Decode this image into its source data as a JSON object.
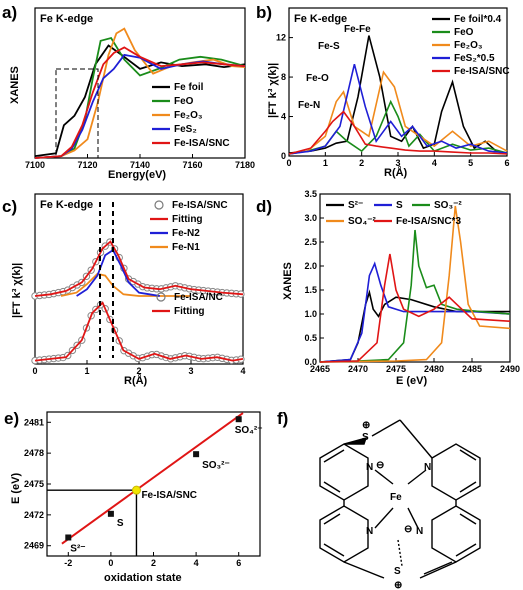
{
  "panels": {
    "a": "a)",
    "b": "b)",
    "c": "c)",
    "d": "d)",
    "e": "e)",
    "f": "f)"
  },
  "chart_data": [
    {
      "panel": "a",
      "type": "line",
      "title": "Fe K-edge",
      "xlabel": "Energy(eV)",
      "ylabel": "XANES",
      "xlim": [
        7100,
        7180
      ],
      "ylim": [
        0,
        1.6
      ],
      "xticks": [
        7100,
        7120,
        7140,
        7160,
        7180
      ],
      "legend_position": "bottom-right",
      "series": [
        {
          "name": "Fe foil",
          "color": "#000000",
          "x": [
            7100,
            7108,
            7111,
            7115,
            7119,
            7123,
            7128,
            7133,
            7140,
            7148,
            7156,
            7165,
            7172,
            7180
          ],
          "y": [
            0.02,
            0.05,
            0.35,
            0.45,
            0.65,
            1.0,
            1.2,
            1.1,
            0.95,
            1.02,
            0.98,
            1.0,
            0.97,
            1.0
          ]
        },
        {
          "name": "FeO",
          "color": "#1a8c1a",
          "x": [
            7100,
            7110,
            7115,
            7119,
            7122,
            7125,
            7129,
            7134,
            7140,
            7147,
            7155,
            7163,
            7171,
            7180
          ],
          "y": [
            0.0,
            0.02,
            0.1,
            0.4,
            0.85,
            1.25,
            1.28,
            1.05,
            0.88,
            0.95,
            1.05,
            1.08,
            1.05,
            0.98
          ]
        },
        {
          "name": "Fe2O3",
          "color": "#f08a1c",
          "x": [
            7100,
            7110,
            7115,
            7120,
            7124,
            7128,
            7131,
            7134,
            7138,
            7145,
            7152,
            7160,
            7168,
            7175,
            7180
          ],
          "y": [
            0.0,
            0.02,
            0.08,
            0.2,
            0.6,
            1.1,
            1.33,
            1.38,
            1.15,
            0.9,
            0.98,
            1.02,
            1.05,
            0.98,
            0.97
          ]
        },
        {
          "name": "FeS2",
          "color": "#1f1fd6",
          "x": [
            7100,
            7110,
            7114,
            7118,
            7122,
            7126,
            7130,
            7134,
            7140,
            7148,
            7156,
            7164,
            7172,
            7180
          ],
          "y": [
            0.0,
            0.02,
            0.1,
            0.3,
            0.6,
            0.85,
            0.95,
            1.1,
            1.07,
            0.95,
            1.0,
            1.03,
            1.0,
            0.98
          ]
        },
        {
          "name": "Fe-ISA/SNC",
          "color": "#e01515",
          "x": [
            7100,
            7110,
            7114,
            7118,
            7122,
            7126,
            7130,
            7134,
            7140,
            7148,
            7156,
            7164,
            7172,
            7180
          ],
          "y": [
            0.0,
            0.02,
            0.12,
            0.35,
            0.7,
            1.0,
            1.12,
            1.18,
            1.08,
            0.98,
            1.0,
            1.02,
            1.0,
            0.98
          ]
        }
      ]
    },
    {
      "panel": "b",
      "type": "line",
      "title": "Fe K-edge",
      "xlabel": "R(Å)",
      "ylabel": "|FT k³ χ(k)|",
      "xlim": [
        0,
        6
      ],
      "ylim": [
        0,
        15
      ],
      "yticks": [
        0,
        4,
        8,
        12
      ],
      "xticks": [
        0,
        1,
        2,
        3,
        4,
        5,
        6
      ],
      "legend_position": "top-right",
      "annotations": [
        "Fe-Fe",
        "Fe-S",
        "Fe-O",
        "Fe-N"
      ],
      "series": [
        {
          "name": "Fe foil*0.4",
          "color": "#000000",
          "x": [
            0,
            0.6,
            1.0,
            1.3,
            1.6,
            1.9,
            2.2,
            2.5,
            2.8,
            3.1,
            3.4,
            3.7,
            4.0,
            4.2,
            4.5,
            4.8,
            5.1,
            5.4,
            5.7,
            6.0
          ],
          "y": [
            0.3,
            0.5,
            0.8,
            1.3,
            1.5,
            6.0,
            12.2,
            8.0,
            2.0,
            1.5,
            3.0,
            0.8,
            1.2,
            4.5,
            7.5,
            3.0,
            0.8,
            1.5,
            0.5,
            0.3
          ]
        },
        {
          "name": "FeO",
          "color": "#1a8c1a",
          "x": [
            0,
            0.5,
            1.0,
            1.3,
            1.6,
            2.0,
            2.4,
            2.8,
            3.0,
            3.3,
            3.6,
            4.0,
            4.5,
            5.0,
            5.5,
            6.0
          ],
          "y": [
            0.2,
            0.5,
            1.0,
            2.5,
            1.5,
            0.5,
            2.0,
            5.5,
            4.0,
            1.0,
            2.2,
            0.5,
            1.2,
            0.6,
            0.8,
            0.3
          ]
        },
        {
          "name": "Fe2O3",
          "color": "#f08a1c",
          "x": [
            0,
            0.5,
            1.0,
            1.3,
            1.5,
            1.8,
            2.2,
            2.6,
            2.9,
            3.2,
            3.6,
            4.0,
            4.5,
            5.0,
            5.5,
            6.0
          ],
          "y": [
            0.2,
            0.5,
            2.0,
            5.5,
            6.5,
            3.0,
            2.0,
            8.5,
            7.0,
            3.0,
            2.0,
            1.0,
            2.5,
            1.0,
            1.5,
            0.5
          ]
        },
        {
          "name": "FeS2*0.5",
          "color": "#1f1fd6",
          "x": [
            0,
            0.6,
            1.0,
            1.4,
            1.8,
            2.1,
            2.4,
            2.8,
            3.1,
            3.4,
            3.8,
            4.2,
            4.6,
            5.0,
            5.5,
            6.0
          ],
          "y": [
            0.2,
            0.5,
            1.0,
            3.0,
            9.3,
            5.0,
            1.5,
            3.5,
            2.0,
            3.0,
            1.0,
            1.5,
            0.8,
            1.2,
            0.5,
            0.3
          ]
        },
        {
          "name": "Fe-ISA/SNC",
          "color": "#e01515",
          "x": [
            0,
            0.6,
            1.0,
            1.2,
            1.5,
            1.8,
            2.1,
            2.4,
            2.8,
            3.2,
            3.6,
            4.0,
            4.5,
            5.0,
            5.5,
            6.0
          ],
          "y": [
            0.2,
            0.8,
            2.5,
            3.5,
            4.5,
            3.0,
            1.2,
            1.0,
            0.8,
            0.6,
            0.5,
            0.5,
            0.4,
            0.3,
            0.3,
            0.2
          ]
        }
      ]
    },
    {
      "panel": "c",
      "type": "line",
      "title": "Fe K-edge",
      "xlabel": "R(Å)",
      "ylabel": "|FT k³ χ(k)|",
      "xlim": [
        0,
        4
      ],
      "ylim": [
        0,
        1
      ],
      "xticks": [
        0,
        1,
        2,
        3,
        4
      ],
      "upper_legend": [
        {
          "name": "Fe-ISA/SNC",
          "color": "#7a7a7a",
          "marker": "circle"
        },
        {
          "name": "Fitting",
          "color": "#e01515"
        },
        {
          "name": "Fe-N2",
          "color": "#1f1fd6"
        },
        {
          "name": "Fe-N1",
          "color": "#f08a1c"
        }
      ],
      "lower_legend": [
        {
          "name": "Fe-ISA/NC",
          "color": "#7a7a7a",
          "marker": "circle"
        },
        {
          "name": "Fitting",
          "color": "#e01515"
        }
      ],
      "upper_fit": {
        "x": [
          0,
          0.3,
          0.6,
          0.9,
          1.1,
          1.3,
          1.45,
          1.6,
          1.8,
          2.1,
          2.4,
          2.7,
          3.0,
          3.3,
          3.6,
          4.0
        ],
        "y": [
          0.4,
          0.41,
          0.43,
          0.48,
          0.56,
          0.68,
          0.72,
          0.64,
          0.5,
          0.45,
          0.44,
          0.46,
          0.44,
          0.43,
          0.42,
          0.41
        ]
      },
      "upper_n2": {
        "x": [
          0.8,
          1.0,
          1.2,
          1.35,
          1.5,
          1.65,
          1.8,
          2.0,
          2.2,
          2.4
        ],
        "y": [
          0.4,
          0.44,
          0.52,
          0.64,
          0.67,
          0.58,
          0.48,
          0.42,
          0.41,
          0.4
        ]
      },
      "upper_n1": {
        "x": [
          0.5,
          0.8,
          1.0,
          1.2,
          1.35,
          1.5,
          1.7,
          2.0,
          2.3,
          2.6,
          3.0
        ],
        "y": [
          0.4,
          0.42,
          0.47,
          0.53,
          0.52,
          0.46,
          0.41,
          0.4,
          0.4,
          0.4,
          0.4
        ]
      },
      "lower_fit": {
        "x": [
          0,
          0.3,
          0.6,
          0.9,
          1.1,
          1.3,
          1.5,
          1.7,
          2.0,
          2.3,
          2.6,
          2.9,
          3.2,
          3.5,
          3.8,
          4.0
        ],
        "y": [
          0.02,
          0.03,
          0.04,
          0.14,
          0.3,
          0.36,
          0.22,
          0.08,
          0.03,
          0.06,
          0.03,
          0.05,
          0.03,
          0.04,
          0.02,
          0.03
        ]
      }
    },
    {
      "panel": "d",
      "type": "line",
      "xlabel": "E (eV)",
      "ylabel": "XANES",
      "xlim": [
        2465,
        2490
      ],
      "ylim": [
        0,
        3.5
      ],
      "xticks": [
        2465,
        2470,
        2475,
        2480,
        2485,
        2490
      ],
      "yticks": [
        0.0,
        0.5,
        1.0,
        1.5,
        2.0,
        2.5,
        3.0,
        3.5
      ],
      "legend_position": "top",
      "series": [
        {
          "name": "S²⁻",
          "color": "#000000",
          "x": [
            2465,
            2469,
            2470,
            2471,
            2471.5,
            2472,
            2472.7,
            2473.5,
            2475,
            2477,
            2480,
            2483,
            2486,
            2490
          ],
          "y": [
            0.0,
            0.05,
            0.4,
            1.2,
            1.45,
            1.1,
            0.95,
            1.2,
            1.35,
            1.3,
            1.15,
            1.05,
            1.05,
            1.05
          ]
        },
        {
          "name": "S",
          "color": "#1f1fd6",
          "x": [
            2465,
            2469,
            2470.5,
            2471.5,
            2472.2,
            2473,
            2474,
            2476,
            2479,
            2482,
            2485,
            2490
          ],
          "y": [
            0.0,
            0.05,
            0.6,
            1.8,
            2.05,
            1.6,
            1.15,
            1.05,
            1.05,
            1.05,
            1.05,
            1.0
          ]
        },
        {
          "name": "SO3-2",
          "color": "#1a8c1a",
          "x": [
            2465,
            2470,
            2474,
            2476,
            2477,
            2477.5,
            2478,
            2479,
            2480,
            2481,
            2483,
            2486,
            2490
          ],
          "y": [
            0.0,
            0.02,
            0.05,
            0.4,
            1.6,
            2.75,
            2.0,
            1.55,
            1.6,
            1.2,
            1.1,
            1.05,
            1.0
          ]
        },
        {
          "name": "SO4-2",
          "color": "#f08a1c",
          "x": [
            2465,
            2475,
            2479,
            2481,
            2482,
            2482.8,
            2483.5,
            2484.5,
            2486,
            2490
          ],
          "y": [
            0.0,
            0.02,
            0.05,
            0.4,
            1.8,
            3.25,
            2.5,
            1.2,
            0.75,
            0.7
          ]
        },
        {
          "name": "Fe-ISA/SNC*3",
          "color": "#e01515",
          "x": [
            2465,
            2470,
            2472.5,
            2473.5,
            2474.2,
            2475,
            2476,
            2478,
            2480,
            2482,
            2483,
            2485,
            2490
          ],
          "y": [
            0.0,
            0.02,
            0.4,
            1.6,
            2.25,
            1.5,
            1.1,
            0.95,
            1.1,
            1.35,
            1.2,
            0.9,
            0.85
          ]
        }
      ]
    },
    {
      "panel": "e",
      "type": "scatter",
      "xlabel": "oxidation state",
      "ylabel": "E (eV)",
      "xlim": [
        -3,
        7
      ],
      "ylim": [
        2468,
        2482
      ],
      "xticks": [
        -2,
        0,
        2,
        4,
        6
      ],
      "yticks": [
        2469,
        2472,
        2475,
        2478,
        2481
      ],
      "fit_line": {
        "x": [
          -2.3,
          6.2
        ],
        "y": [
          2469.2,
          2481.9
        ],
        "color": "#e01515"
      },
      "marker_point": {
        "name": "Fe-ISA/SNC",
        "x": 1.2,
        "y": 2474.4,
        "color": "#f2e600"
      },
      "points": [
        {
          "name": "S²⁻",
          "x": -2,
          "y": 2469.8
        },
        {
          "name": "S",
          "x": 0,
          "y": 2472.1
        },
        {
          "name": "SO₃²⁻",
          "x": 4,
          "y": 2477.9
        },
        {
          "name": "SO₄²⁻",
          "x": 6,
          "y": 2481.3
        }
      ]
    }
  ],
  "labels": {
    "a_legend": [
      "Fe foil",
      "FeO",
      "Fe₂O₃",
      "FeS₂",
      "Fe-ISA/SNC"
    ],
    "b_legend": [
      "Fe foil*0.4",
      "FeO",
      "Fe₂O₃",
      "FeS₂*0.5",
      "Fe-ISA/SNC"
    ],
    "d_legend_row1": [
      "S²⁻",
      "S",
      "SO₃⁻²"
    ],
    "d_legend_row2": [
      "SO₄⁻²",
      "Fe-ISA/SNC*3"
    ]
  },
  "structure_f": {
    "atoms": [
      "S",
      "N",
      "Fe",
      "N",
      "N",
      "N",
      "S"
    ],
    "charges": [
      "⊕",
      "⊖",
      "⊖",
      "⊕"
    ]
  }
}
